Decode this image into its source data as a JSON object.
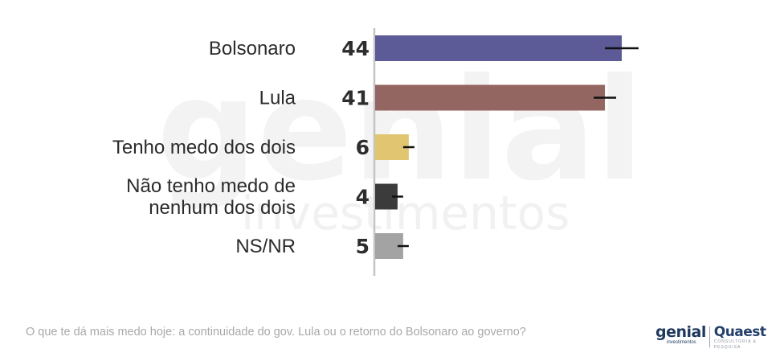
{
  "watermark": {
    "main": "genial",
    "sub": "investimentos"
  },
  "chart_data": {
    "type": "bar",
    "orientation": "horizontal",
    "categories": [
      [
        "Bolsonaro"
      ],
      [
        "Lula"
      ],
      [
        "Tenho medo dos dois"
      ],
      [
        "Não tenho medo de",
        "nenhum dos dois"
      ],
      [
        "NS/NR"
      ]
    ],
    "values": [
      44,
      41,
      6,
      4,
      5
    ],
    "error_margin": [
      3,
      2,
      1,
      1,
      1
    ],
    "colors": [
      "#5d5a98",
      "#936662",
      "#e2c571",
      "#3b3b3b",
      "#a3a3a3"
    ],
    "error_bar_color": "#111111",
    "xlim": [
      0,
      44
    ]
  },
  "footer": {
    "question": "O que te dá mais medo hoje: a continuidade do gov. Lula ou o retorno do Bolsonaro ao governo?",
    "logo_genial": "genial",
    "logo_genial_sub": "investimentos",
    "logo_quaest": "Quaest",
    "logo_quaest_sub": "CONSULTORIA & PESQUISA"
  }
}
